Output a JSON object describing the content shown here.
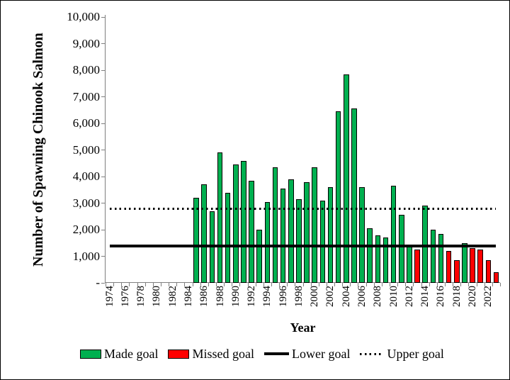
{
  "figure": {
    "y_axis_title": "Number of Spawning Chinook Salmon",
    "x_axis_title": "Year",
    "y_tick_labels": [
      "10,000",
      "9,000",
      "8,000",
      "7,000",
      "6,000",
      "5,000",
      "4,000",
      "3,000",
      "2,000",
      "1,000",
      "-"
    ],
    "legend": [
      {
        "label": "Made goal",
        "marker": "swatch",
        "color": "#00B050"
      },
      {
        "label": "Missed goal",
        "marker": "swatch",
        "color": "#FF0000"
      },
      {
        "label": "Lower goal",
        "marker": "solid-line",
        "color": "#000000"
      },
      {
        "label": "Upper goal",
        "marker": "dotted-line",
        "color": "#000000"
      }
    ]
  },
  "chart_data": {
    "type": "bar",
    "title": "",
    "xlabel": "Year",
    "ylabel": "Number of Spawning Chinook Salmon",
    "ylim": [
      0,
      10000
    ],
    "y_tick_step": 1000,
    "x_axis_years": [
      1974,
      2023
    ],
    "x_tick_labels": [
      "1974",
      "1976",
      "1978",
      "1980",
      "1982",
      "1984",
      "1986",
      "1988",
      "1990",
      "1992",
      "1994",
      "1996",
      "1998",
      "2000",
      "2002",
      "2004",
      "2006",
      "2008",
      "2010",
      "2012",
      "2014",
      "2016",
      "2018",
      "2020",
      "2022"
    ],
    "grid": false,
    "legend_position": "bottom",
    "series_colors": {
      "made": "#00B050",
      "missed": "#FF0000"
    },
    "bars": [
      {
        "year": 1985,
        "value": 3200,
        "status": "made"
      },
      {
        "year": 1986,
        "value": 3700,
        "status": "made"
      },
      {
        "year": 1987,
        "value": 2700,
        "status": "made"
      },
      {
        "year": 1988,
        "value": 4900,
        "status": "made"
      },
      {
        "year": 1989,
        "value": 3400,
        "status": "made"
      },
      {
        "year": 1990,
        "value": 4450,
        "status": "made"
      },
      {
        "year": 1991,
        "value": 4600,
        "status": "made"
      },
      {
        "year": 1992,
        "value": 3850,
        "status": "made"
      },
      {
        "year": 1993,
        "value": 2000,
        "status": "made"
      },
      {
        "year": 1994,
        "value": 3050,
        "status": "made"
      },
      {
        "year": 1995,
        "value": 4350,
        "status": "made"
      },
      {
        "year": 1996,
        "value": 3550,
        "status": "made"
      },
      {
        "year": 1997,
        "value": 3900,
        "status": "made"
      },
      {
        "year": 1998,
        "value": 3150,
        "status": "made"
      },
      {
        "year": 1999,
        "value": 3800,
        "status": "made"
      },
      {
        "year": 2000,
        "value": 4350,
        "status": "made"
      },
      {
        "year": 2001,
        "value": 3100,
        "status": "made"
      },
      {
        "year": 2002,
        "value": 3600,
        "status": "made"
      },
      {
        "year": 2003,
        "value": 6450,
        "status": "made"
      },
      {
        "year": 2004,
        "value": 7850,
        "status": "made"
      },
      {
        "year": 2005,
        "value": 6550,
        "status": "made"
      },
      {
        "year": 2006,
        "value": 3600,
        "status": "made"
      },
      {
        "year": 2007,
        "value": 2050,
        "status": "made"
      },
      {
        "year": 2008,
        "value": 1800,
        "status": "made"
      },
      {
        "year": 2009,
        "value": 1700,
        "status": "made"
      },
      {
        "year": 2010,
        "value": 3650,
        "status": "made"
      },
      {
        "year": 2011,
        "value": 2550,
        "status": "made"
      },
      {
        "year": 2012,
        "value": 1450,
        "status": "made"
      },
      {
        "year": 2013,
        "value": 1250,
        "status": "missed"
      },
      {
        "year": 2014,
        "value": 2900,
        "status": "made"
      },
      {
        "year": 2015,
        "value": 2000,
        "status": "made"
      },
      {
        "year": 2016,
        "value": 1850,
        "status": "made"
      },
      {
        "year": 2017,
        "value": 1200,
        "status": "missed"
      },
      {
        "year": 2018,
        "value": 850,
        "status": "missed"
      },
      {
        "year": 2019,
        "value": 1500,
        "status": "made"
      },
      {
        "year": 2020,
        "value": 1300,
        "status": "missed"
      },
      {
        "year": 2021,
        "value": 1250,
        "status": "missed"
      },
      {
        "year": 2022,
        "value": 850,
        "status": "missed"
      },
      {
        "year": 2023,
        "value": 400,
        "status": "missed"
      }
    ],
    "reference_lines": [
      {
        "name": "Lower goal",
        "value": 1400,
        "style": "solid",
        "color": "#000000"
      },
      {
        "name": "Upper goal",
        "value": 2800,
        "style": "dotted",
        "color": "#000000"
      }
    ]
  }
}
